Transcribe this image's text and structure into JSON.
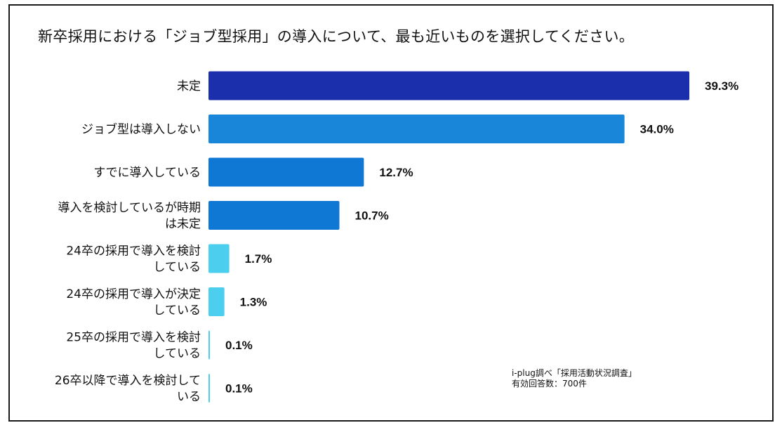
{
  "chart_data": {
    "type": "bar",
    "orientation": "horizontal",
    "title": "新卒採用における「ジョブ型採用」の導入について、最も近いものを選択してください。",
    "categories": [
      [
        "未定"
      ],
      [
        "ジョブ型は導入しない"
      ],
      [
        "すでに導入している"
      ],
      [
        "導入を検討しているが時期",
        "は未定"
      ],
      [
        "24卒の採用で導入を検討",
        "している"
      ],
      [
        "24卒の採用で導入が決定",
        "している"
      ],
      [
        "25卒の採用で導入を検討",
        "している"
      ],
      [
        "26卒以降で導入を検討して",
        "いる"
      ]
    ],
    "values": [
      39.3,
      34.0,
      12.7,
      10.7,
      1.7,
      1.3,
      0.1,
      0.1
    ],
    "value_labels": [
      "39.3%",
      "34.0%",
      "12.7%",
      "10.7%",
      "1.7%",
      "1.3%",
      "0.1%",
      "0.1%"
    ],
    "bar_colors": [
      "#1b2fad",
      "#1a86d9",
      "#0f78d4",
      "#0f78d4",
      "#4ccfee",
      "#4ccfee",
      "#4ccfee",
      "#4ccfee"
    ],
    "xlim": [
      0,
      39.3
    ],
    "unit": "%"
  },
  "source": {
    "line1": "i-plug調べ「採用活動状況調査」",
    "line2": "有効回答数：700件"
  }
}
